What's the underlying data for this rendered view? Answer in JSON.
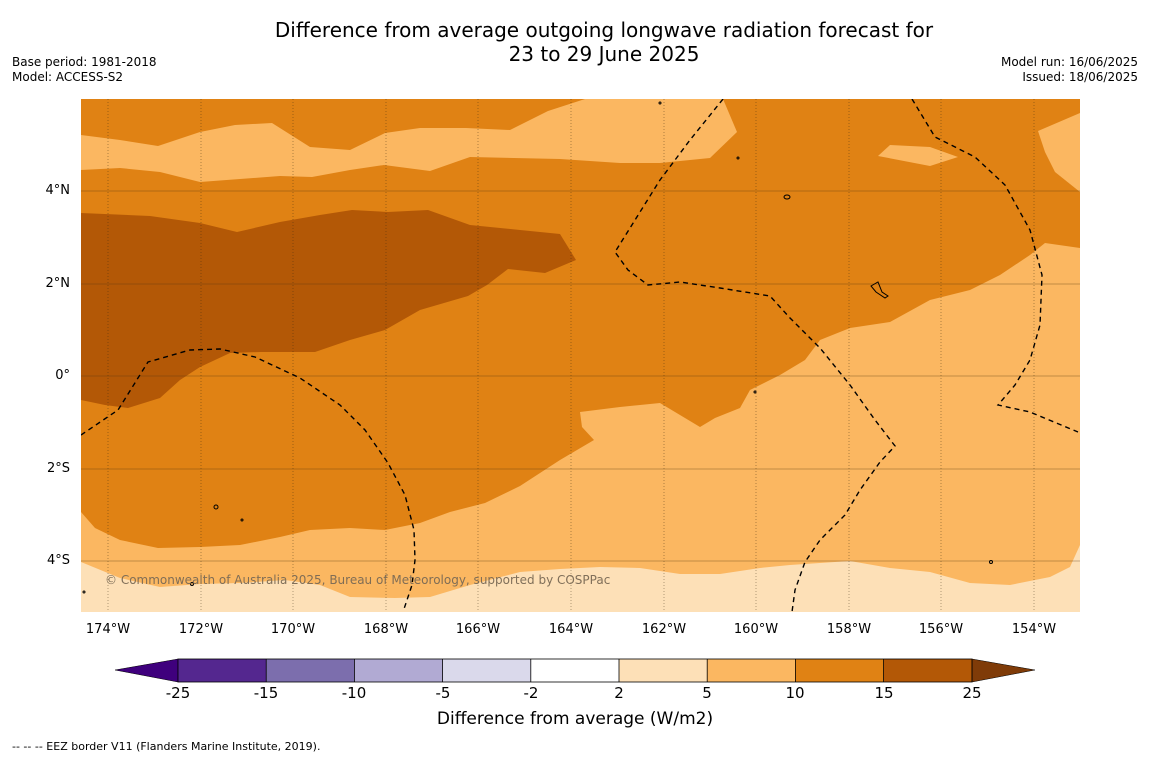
{
  "title": {
    "line1": "Difference from average outgoing longwave radiation forecast for",
    "line2": "23 to 29 June 2025"
  },
  "meta_left": {
    "base_period": "Base period: 1981-2018",
    "model": "Model: ACCESS-S2"
  },
  "meta_right": {
    "model_run": "Model run: 16/06/2025",
    "issued": "Issued: 18/06/2025"
  },
  "credit": "© Commonwealth of Australia 2025, Bureau of Meteorology, supported by COSPPac",
  "latitude_labels": [
    "4°N",
    "2°N",
    "0°",
    "2°S",
    "4°S"
  ],
  "longitude_labels": [
    "174°W",
    "172°W",
    "170°W",
    "168°W",
    "166°W",
    "164°W",
    "162°W",
    "160°W",
    "158°W",
    "156°W",
    "154°W"
  ],
  "colorbar": {
    "title": "Difference from average (W/m2)",
    "tick_labels": [
      "-25",
      "-15",
      "-10",
      "-5",
      "-2",
      "2",
      "5",
      "10",
      "15",
      "25"
    ],
    "colors": [
      "#3f007d",
      "#54278f",
      "#7c6ead",
      "#b1aad3",
      "#dad9eb",
      "#ffffff",
      "#fde0b7",
      "#fbb761",
      "#e08214",
      "#b35806",
      "#7f3b08"
    ]
  },
  "footnote": "--  --  -- EEZ border V11 (Flanders Marine Institute, 2019)."
}
